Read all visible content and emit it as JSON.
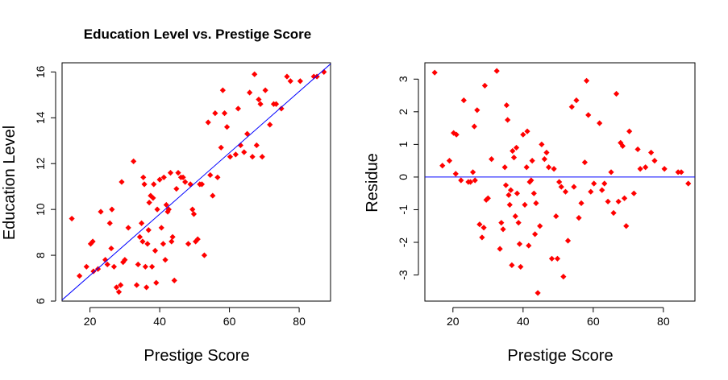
{
  "chart_data": [
    {
      "type": "scatter",
      "title": "Education Level vs. Prestige Score",
      "xlabel": "Prestige Score",
      "ylabel": "Education Level",
      "xlim": [
        12,
        89
      ],
      "ylim": [
        6,
        16.4
      ],
      "xticks": [
        20,
        40,
        60,
        80
      ],
      "yticks": [
        6,
        8,
        10,
        12,
        14,
        16
      ],
      "marker_color": "#ff0000",
      "line_color": "#0000ff",
      "fit_line": {
        "x": [
          12,
          89
        ],
        "y": [
          6.05,
          16.35
        ]
      },
      "points": [
        [
          14.8,
          9.6
        ],
        [
          17,
          7.1
        ],
        [
          19,
          7.5
        ],
        [
          20.2,
          8.5
        ],
        [
          20.8,
          8.6
        ],
        [
          21,
          7.3
        ],
        [
          22.3,
          7.4
        ],
        [
          23.1,
          9.9
        ],
        [
          24.4,
          7.8
        ],
        [
          25,
          7.6
        ],
        [
          25.7,
          9.4
        ],
        [
          26.1,
          8.3
        ],
        [
          26.3,
          10
        ],
        [
          26.9,
          7.5
        ],
        [
          27.6,
          6.6
        ],
        [
          28.3,
          6.4
        ],
        [
          28.8,
          6.7
        ],
        [
          29.1,
          11.2
        ],
        [
          29.5,
          7.7
        ],
        [
          30,
          7.8
        ],
        [
          31,
          9.2
        ],
        [
          32.5,
          12.1
        ],
        [
          33.4,
          6.7
        ],
        [
          33.8,
          7.6
        ],
        [
          34.3,
          8.8
        ],
        [
          34.8,
          9.4
        ],
        [
          35.1,
          8.6
        ],
        [
          35.3,
          11.4
        ],
        [
          35.6,
          11.1
        ],
        [
          35.9,
          7.5
        ],
        [
          36.2,
          6.6
        ],
        [
          36.5,
          8.5
        ],
        [
          36.8,
          9.1
        ],
        [
          37,
          10.3
        ],
        [
          37.4,
          10.6
        ],
        [
          37.8,
          7.5
        ],
        [
          38.1,
          10.5
        ],
        [
          38.3,
          11.1
        ],
        [
          38.7,
          8.2
        ],
        [
          39,
          6.8
        ],
        [
          39.3,
          10
        ],
        [
          40,
          11.3
        ],
        [
          40.5,
          9.2
        ],
        [
          41,
          8.5
        ],
        [
          41.2,
          11.4
        ],
        [
          41.6,
          7.8
        ],
        [
          41.9,
          10.2
        ],
        [
          42.3,
          9.9
        ],
        [
          42.6,
          10
        ],
        [
          43.1,
          11.6
        ],
        [
          43.4,
          8.6
        ],
        [
          43.7,
          8.8
        ],
        [
          44.2,
          6.9
        ],
        [
          44.8,
          10.9
        ],
        [
          45.3,
          11.6
        ],
        [
          46.1,
          11.4
        ],
        [
          46.7,
          11.4
        ],
        [
          47.3,
          11.2
        ],
        [
          48.2,
          8.5
        ],
        [
          48.8,
          11.1
        ],
        [
          49.4,
          10
        ],
        [
          49.8,
          9.8
        ],
        [
          50.3,
          8.6
        ],
        [
          50.9,
          8.7
        ],
        [
          51.5,
          11.1
        ],
        [
          52.1,
          11.1
        ],
        [
          52.8,
          8
        ],
        [
          53.9,
          13.8
        ],
        [
          54.5,
          11.5
        ],
        [
          55.2,
          10.6
        ],
        [
          55.9,
          14.2
        ],
        [
          56.6,
          11.4
        ],
        [
          57.6,
          12.7
        ],
        [
          58.1,
          15.2
        ],
        [
          58.6,
          14.2
        ],
        [
          59.3,
          13.6
        ],
        [
          60.2,
          12.3
        ],
        [
          61.8,
          12.4
        ],
        [
          62.5,
          14.4
        ],
        [
          63.2,
          12.8
        ],
        [
          64.2,
          12.5
        ],
        [
          65.1,
          13.3
        ],
        [
          65.8,
          15.1
        ],
        [
          66.6,
          12.3
        ],
        [
          67.2,
          15.9
        ],
        [
          67.8,
          12.8
        ],
        [
          68.4,
          14.8
        ],
        [
          68.9,
          14.6
        ],
        [
          69.4,
          12.3
        ],
        [
          70.3,
          15.2
        ],
        [
          71.6,
          13.7
        ],
        [
          72.7,
          14.6
        ],
        [
          73.4,
          14.6
        ],
        [
          74.9,
          14.4
        ],
        [
          76.5,
          15.8
        ],
        [
          77.5,
          15.6
        ],
        [
          80.3,
          15.6
        ],
        [
          84.2,
          15.8
        ],
        [
          85.1,
          15.8
        ],
        [
          87.1,
          16
        ]
      ]
    },
    {
      "type": "scatter",
      "title": "",
      "xlabel": "Prestige Score",
      "ylabel": "Residue",
      "xlim": [
        12,
        89
      ],
      "ylim": [
        -3.8,
        3.5
      ],
      "xticks": [
        20,
        40,
        60,
        80
      ],
      "yticks": [
        -3,
        -2,
        -1,
        0,
        1,
        2,
        3
      ],
      "marker_color": "#ff0000",
      "line_color": "#0000ff",
      "hline": 0,
      "points": [
        [
          14.8,
          3.2
        ],
        [
          17,
          0.35
        ],
        [
          19,
          0.5
        ],
        [
          20.2,
          1.35
        ],
        [
          20.8,
          0.1
        ],
        [
          21,
          1.3
        ],
        [
          22.3,
          -0.1
        ],
        [
          23.1,
          2.35
        ],
        [
          24.4,
          -0.15
        ],
        [
          25,
          -0.15
        ],
        [
          25.7,
          0.15
        ],
        [
          26.1,
          1.55
        ],
        [
          26.3,
          -0.1
        ],
        [
          26.9,
          2.05
        ],
        [
          27.6,
          -1.45
        ],
        [
          28.3,
          -1.85
        ],
        [
          28.8,
          -1.55
        ],
        [
          29.1,
          2.8
        ],
        [
          29.5,
          -0.7
        ],
        [
          30,
          -0.65
        ],
        [
          31,
          0.55
        ],
        [
          32.5,
          3.25
        ],
        [
          33.4,
          -2.2
        ],
        [
          33.8,
          -1.4
        ],
        [
          34.3,
          -1.6
        ],
        [
          34.8,
          0.3
        ],
        [
          35.1,
          -0.25
        ],
        [
          35.3,
          2.2
        ],
        [
          35.6,
          1.75
        ],
        [
          35.9,
          -0.55
        ],
        [
          36.2,
          -0.85
        ],
        [
          36.5,
          -0.4
        ],
        [
          36.8,
          -2.7
        ],
        [
          37,
          0.8
        ],
        [
          37.4,
          0.6
        ],
        [
          37.8,
          -1.2
        ],
        [
          38.1,
          0.9
        ],
        [
          38.3,
          -0.5
        ],
        [
          38.7,
          -1.4
        ],
        [
          39,
          -2.05
        ],
        [
          39.3,
          -2.75
        ],
        [
          40,
          1.3
        ],
        [
          40.5,
          -0.85
        ],
        [
          41,
          0.3
        ],
        [
          41.2,
          1.4
        ],
        [
          41.6,
          -2.1
        ],
        [
          41.9,
          -0.15
        ],
        [
          42.3,
          -0.1
        ],
        [
          42.6,
          0.5
        ],
        [
          43.1,
          -0.5
        ],
        [
          43.4,
          -1.75
        ],
        [
          43.7,
          -0.8
        ],
        [
          44.2,
          -3.55
        ],
        [
          44.8,
          -1.5
        ],
        [
          45.3,
          1
        ],
        [
          46.1,
          0.55
        ],
        [
          46.7,
          0.75
        ],
        [
          47.3,
          0.3
        ],
        [
          48.2,
          -2.5
        ],
        [
          48.8,
          0.25
        ],
        [
          49.4,
          -1.2
        ],
        [
          49.8,
          -2.5
        ],
        [
          50.3,
          -0.15
        ],
        [
          50.9,
          -0.3
        ],
        [
          51.5,
          -3.05
        ],
        [
          52.1,
          -0.45
        ],
        [
          52.8,
          -1.95
        ],
        [
          53.9,
          2.15
        ],
        [
          54.5,
          -0.3
        ],
        [
          55.2,
          2.35
        ],
        [
          55.9,
          -1.25
        ],
        [
          56.6,
          -0.8
        ],
        [
          57.6,
          0.45
        ],
        [
          58.1,
          2.95
        ],
        [
          58.6,
          1.9
        ],
        [
          59.3,
          -0.45
        ],
        [
          60.2,
          -0.2
        ],
        [
          61.8,
          1.65
        ],
        [
          62.5,
          -0.4
        ],
        [
          63.2,
          -0.2
        ],
        [
          64.2,
          -0.75
        ],
        [
          65.1,
          0.15
        ],
        [
          65.8,
          -1.1
        ],
        [
          66.6,
          2.55
        ],
        [
          67.2,
          -0.75
        ],
        [
          67.8,
          1.05
        ],
        [
          68.4,
          0.95
        ],
        [
          68.9,
          -0.65
        ],
        [
          69.4,
          -1.5
        ],
        [
          70.3,
          1.4
        ],
        [
          71.6,
          -0.5
        ],
        [
          72.7,
          0.85
        ],
        [
          73.4,
          0.25
        ],
        [
          74.9,
          0.3
        ],
        [
          76.5,
          0.75
        ],
        [
          77.5,
          0.5
        ],
        [
          80.3,
          0.25
        ],
        [
          84.2,
          0.15
        ],
        [
          85.1,
          0.15
        ],
        [
          87.1,
          -0.2
        ]
      ]
    }
  ]
}
